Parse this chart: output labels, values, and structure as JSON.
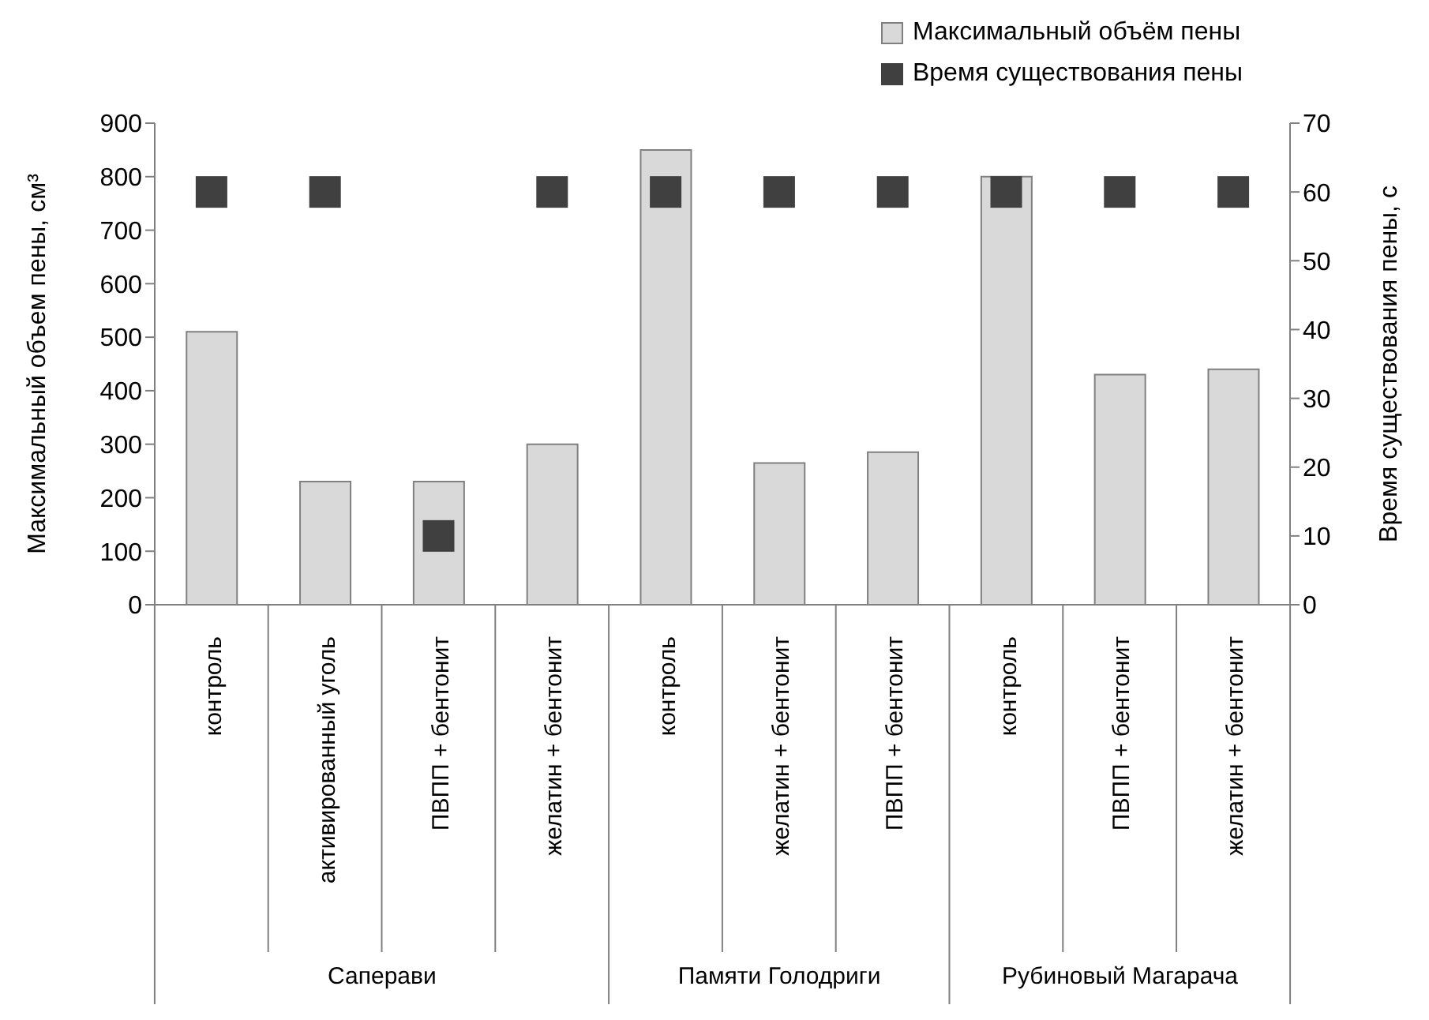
{
  "chart_data": {
    "type": "bar",
    "ylabel": "Максимальный объем пены, см³",
    "y2label": "Время существования пены, с",
    "categories": [
      "контроль",
      "активированный уголь",
      "ПВПП + бентонит",
      "желатин + бентонит",
      "контроль",
      "желатин + бентонит",
      "ПВПП + бентонит",
      "контроль",
      "ПВПП + бентонит",
      "желатин + бентонит"
    ],
    "series": [
      {
        "name": "Максимальный объём пены",
        "color": "#d9d9d9",
        "values": [
          510,
          230,
          230,
          300,
          850,
          265,
          285,
          800,
          430,
          440
        ]
      },
      {
        "name": "Время существования пены",
        "type": "scatter",
        "axis": "y2",
        "marker": "square",
        "color": "#404040",
        "values": [
          60,
          60,
          10,
          60,
          60,
          60,
          60,
          60,
          60,
          60
        ]
      }
    ],
    "annotations": [
      "Саперави",
      "Памяти Голодриги",
      "Рубиновый Магарача"
    ],
    "ylim": [
      0,
      900
    ],
    "yticks": [
      0,
      100,
      200,
      300,
      400,
      500,
      600,
      700,
      800,
      900
    ],
    "y2lim": [
      0,
      70
    ],
    "y2ticks": [
      0,
      10,
      20,
      30,
      40,
      50,
      60,
      70
    ],
    "grid": false,
    "legend": "top right"
  }
}
